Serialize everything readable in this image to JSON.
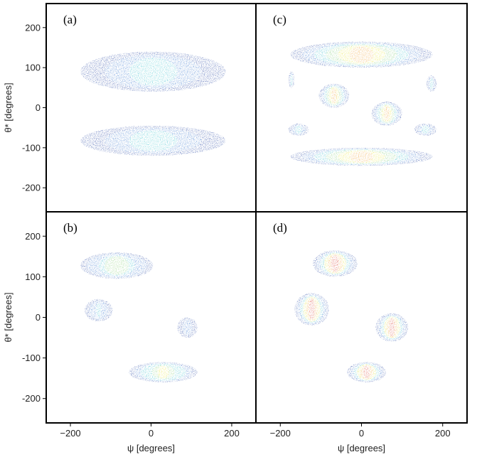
{
  "chart_data": [
    {
      "type": "heatmap",
      "panel": "(a)",
      "xlabel": "",
      "ylabel": "θ* [degrees]",
      "xlim": [
        -260,
        260
      ],
      "ylim": [
        -260,
        260
      ],
      "xticks": [],
      "yticks": [
        -200,
        -100,
        0,
        100,
        200
      ],
      "colorscale": [
        "#1f3f9f",
        "#3a78d0",
        "#48c8cf",
        "#8fd37a",
        "#f2e93b",
        "#f2a13b",
        "#d8322a"
      ],
      "regions": [
        {
          "psi": [
            -175,
            185
          ],
          "theta": [
            40,
            140
          ],
          "peak_level": 0.35
        },
        {
          "psi": [
            -175,
            185
          ],
          "theta": [
            -120,
            -45
          ],
          "peak_level": 0.35
        }
      ]
    },
    {
      "type": "heatmap",
      "panel": "(b)",
      "xlabel": "ψ [degrees]",
      "ylabel": "θ* [degrees]",
      "xlim": [
        -260,
        260
      ],
      "ylim": [
        -260,
        260
      ],
      "xticks": [
        -200,
        0,
        200
      ],
      "yticks": [
        -200,
        -100,
        0,
        100,
        200
      ],
      "colorscale": [
        "#1f3f9f",
        "#3a78d0",
        "#48c8cf",
        "#8fd37a",
        "#f2e93b",
        "#f2a13b",
        "#d8322a"
      ],
      "regions": [
        {
          "psi": [
            -175,
            5
          ],
          "theta": [
            95,
            160
          ],
          "peak_level": 0.55
        },
        {
          "psi": [
            -165,
            -95
          ],
          "theta": [
            -10,
            45
          ],
          "peak_level": 0.3
        },
        {
          "psi": [
            65,
            115
          ],
          "theta": [
            -50,
            0
          ],
          "peak_level": 0.2
        },
        {
          "psi": [
            -55,
            115
          ],
          "theta": [
            -160,
            -110
          ],
          "peak_level": 0.65
        }
      ]
    },
    {
      "type": "heatmap",
      "panel": "(c)",
      "xlabel": "",
      "ylabel": "",
      "xlim": [
        -260,
        260
      ],
      "ylim": [
        -260,
        260
      ],
      "xticks": [],
      "yticks": [],
      "colorscale": [
        "#1f3f9f",
        "#3a78d0",
        "#48c8cf",
        "#8fd37a",
        "#f2e93b",
        "#f2a13b",
        "#d8322a"
      ],
      "regions": [
        {
          "psi": [
            -175,
            175
          ],
          "theta": [
            100,
            165
          ],
          "peak_level": 0.9
        },
        {
          "psi": [
            -105,
            -30
          ],
          "theta": [
            0,
            60
          ],
          "peak_level": 0.85
        },
        {
          "psi": [
            25,
            100
          ],
          "theta": [
            -45,
            15
          ],
          "peak_level": 0.85
        },
        {
          "psi": [
            -175,
            175
          ],
          "theta": [
            -145,
            -100
          ],
          "peak_level": 0.9
        },
        {
          "psi": [
            -180,
            -165
          ],
          "theta": [
            50,
            90
          ],
          "peak_level": 0.4
        },
        {
          "psi": [
            160,
            185
          ],
          "theta": [
            40,
            80
          ],
          "peak_level": 0.4
        },
        {
          "psi": [
            -180,
            -130
          ],
          "theta": [
            -70,
            -40
          ],
          "peak_level": 0.4
        },
        {
          "psi": [
            130,
            185
          ],
          "theta": [
            -70,
            -40
          ],
          "peak_level": 0.4
        }
      ]
    },
    {
      "type": "heatmap",
      "panel": "(d)",
      "xlabel": "ψ [degrees]",
      "ylabel": "",
      "xlim": [
        -260,
        260
      ],
      "ylim": [
        -260,
        260
      ],
      "xticks": [
        -200,
        0,
        200
      ],
      "yticks": [],
      "colorscale": [
        "#1f3f9f",
        "#3a78d0",
        "#48c8cf",
        "#8fd37a",
        "#f2e93b",
        "#f2a13b",
        "#d8322a"
      ],
      "regions": [
        {
          "psi": [
            -120,
            -10
          ],
          "theta": [
            100,
            165
          ],
          "peak_level": 1.0
        },
        {
          "psi": [
            -165,
            -80
          ],
          "theta": [
            -20,
            60
          ],
          "peak_level": 1.0
        },
        {
          "psi": [
            35,
            115
          ],
          "theta": [
            -60,
            10
          ],
          "peak_level": 1.0
        },
        {
          "psi": [
            -35,
            60
          ],
          "theta": [
            -160,
            -110
          ],
          "peak_level": 1.0
        }
      ]
    }
  ]
}
